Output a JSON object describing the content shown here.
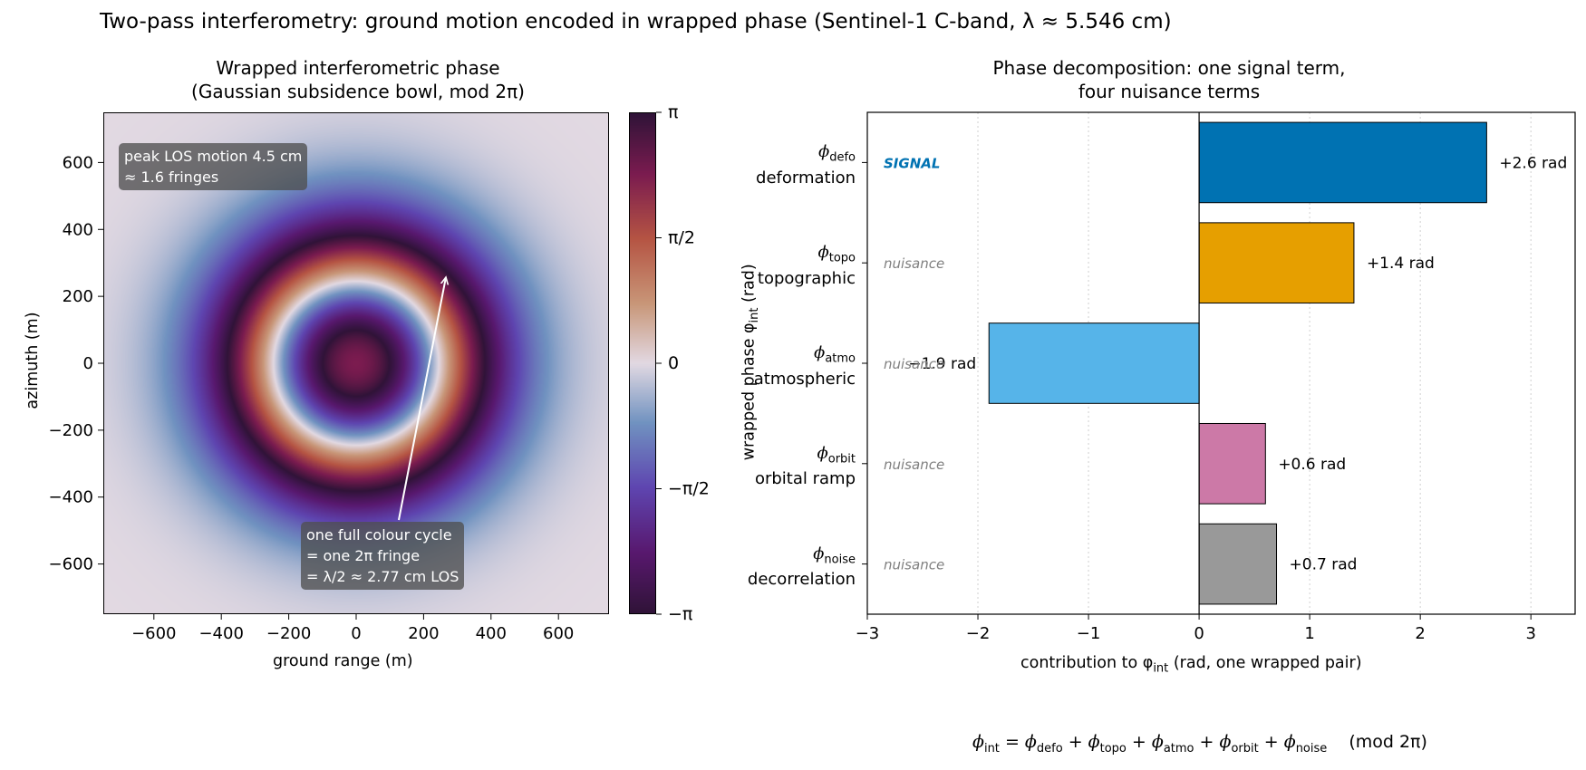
{
  "figure_title": "Two-pass interferometry: ground motion encoded in wrapped phase (Sentinel-1 C-band, λ ≈ 5.546 cm)",
  "left_panel": {
    "title_line1": "Wrapped interferometric phase",
    "title_line2": "(Gaussian subsidence bowl, mod 2π)",
    "xlabel": "ground range (m)",
    "ylabel": "azimuth (m)",
    "xticks": [
      "−600",
      "−400",
      "−200",
      "0",
      "200",
      "400",
      "600"
    ],
    "yticks": [
      "600",
      "400",
      "200",
      "0",
      "−200",
      "−400",
      "−600"
    ],
    "colorbar_ticks": [
      "π",
      "π/2",
      "0",
      "−π/2",
      "−π"
    ],
    "note_peak_line1": "peak LOS motion 4.5 cm",
    "note_peak_line2": "≈ 1.6 fringes",
    "note_cycle_line1": "one full colour cycle",
    "note_cycle_line2": "= one 2π fringe",
    "note_cycle_line3": "= λ/2 ≈ 2.77 cm LOS"
  },
  "chart_data": [
    {
      "type": "heatmap",
      "title": "Wrapped interferometric phase (Gaussian subsidence bowl, mod 2π)",
      "xlabel": "ground range (m)",
      "ylabel": "azimuth (m)",
      "xlim": [
        -750,
        750
      ],
      "ylim": [
        -750,
        750
      ],
      "colorbar_range": [
        -3.1416,
        3.1416
      ],
      "colormap": "twilight",
      "peak_los_motion_cm": 4.5,
      "fringes": 1.6,
      "wavelength_cm": 5.546,
      "half_wavelength_cm": 2.77
    },
    {
      "type": "bar",
      "orientation": "horizontal",
      "title": "Phase decomposition: one signal term, four nuisance terms",
      "xlabel": "contribution to φ_int (rad, one wrapped pair)",
      "ylabel": "wrapped phase φ_int (rad)",
      "xlim": [
        -3,
        3.4
      ],
      "xticks": [
        "−3",
        "−2",
        "−1",
        "0",
        "1",
        "2",
        "3"
      ],
      "grid": "x-dotted",
      "categories": [
        {
          "symbol": "ϕ",
          "sub": "defo",
          "name": "deformation",
          "tag": "SIGNAL",
          "value": 2.6,
          "label": "+2.6 rad",
          "color": "#0072b2"
        },
        {
          "symbol": "ϕ",
          "sub": "topo",
          "name": "topographic",
          "tag": "nuisance",
          "value": 1.4,
          "label": "+1.4 rad",
          "color": "#e69f00"
        },
        {
          "symbol": "ϕ",
          "sub": "atmo",
          "name": "atmospheric",
          "tag": "nuisance",
          "value": -1.9,
          "label": "−1.9 rad",
          "color": "#56b4e9"
        },
        {
          "symbol": "ϕ",
          "sub": "orbit",
          "name": "orbital ramp",
          "tag": "nuisance",
          "value": 0.6,
          "label": "+0.6 rad",
          "color": "#cc79a7"
        },
        {
          "symbol": "ϕ",
          "sub": "noise",
          "name": "decorrelation",
          "tag": "nuisance",
          "value": 0.7,
          "label": "+0.7 rad",
          "color": "#999999"
        }
      ]
    }
  ],
  "right_panel": {
    "title_line1": "Phase decomposition: one signal term,",
    "title_line2": "four nuisance terms",
    "xlabel": "contribution to φ",
    "xlabel_sub": "int",
    "xlabel_tail": " (rad, one wrapped pair)",
    "ylabel": "wrapped phase φ",
    "ylabel_sub": "int",
    "ylabel_tail": " (rad)"
  },
  "formula": {
    "lhs": "ϕ",
    "lhs_sub": "int",
    "terms": [
      {
        "sym": "ϕ",
        "sub": "defo"
      },
      {
        "sym": "ϕ",
        "sub": "topo"
      },
      {
        "sym": "ϕ",
        "sub": "atmo"
      },
      {
        "sym": "ϕ",
        "sub": "orbit"
      },
      {
        "sym": "ϕ",
        "sub": "noise"
      }
    ],
    "tail": "(mod 2π)"
  },
  "colors": {
    "signal_tag": "#0072b2",
    "nuisance_tag": "#7f7f7f",
    "grid": "#d0d0d0"
  }
}
